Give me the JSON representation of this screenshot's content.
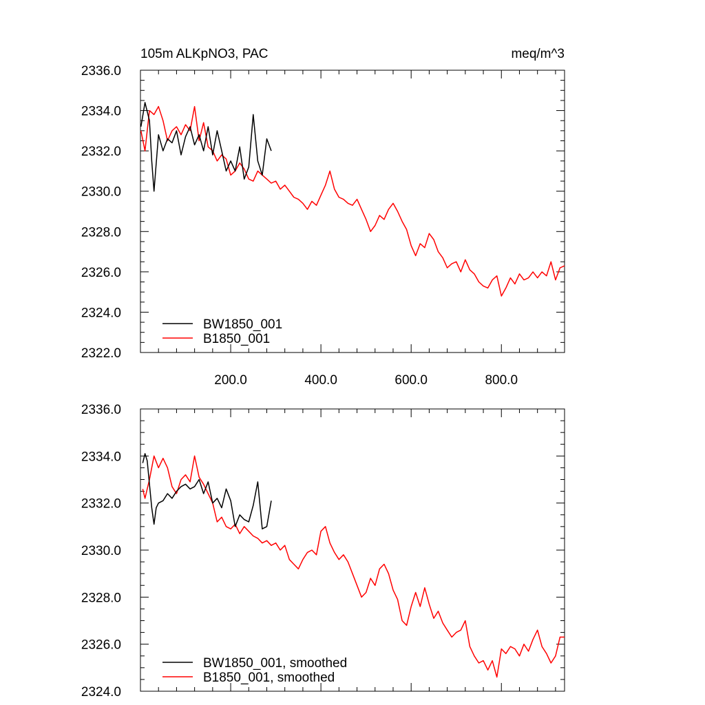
{
  "chart_data": [
    {
      "type": "line",
      "title": "105m ALKpNO3, PAC",
      "units": "meq/m^3",
      "xlim": [
        0,
        940
      ],
      "ylim": [
        2322,
        2336
      ],
      "yticks": [
        2322,
        2324,
        2326,
        2328,
        2330,
        2332,
        2334,
        2336
      ],
      "ytick_labels": [
        "2322.0",
        "2324.0",
        "2326.0",
        "2328.0",
        "2330.0",
        "2332.0",
        "2334.0",
        "2336.0"
      ],
      "xticks": [
        200,
        400,
        600,
        800
      ],
      "xtick_labels": [
        "200.0",
        "400.0",
        "600.0",
        "800.0"
      ],
      "legend": "bottom-left",
      "series": [
        {
          "name": "BW1850_001",
          "color": "#000000",
          "x": [
            1,
            10,
            20,
            25,
            30,
            40,
            50,
            60,
            70,
            80,
            90,
            100,
            110,
            120,
            130,
            140,
            150,
            160,
            170,
            180,
            190,
            200,
            210,
            220,
            230,
            240,
            250,
            260,
            270,
            280,
            290
          ],
          "y": [
            2333.2,
            2334.4,
            2333.5,
            2331.5,
            2330.0,
            2332.8,
            2332.0,
            2332.6,
            2332.4,
            2333.0,
            2331.8,
            2332.7,
            2333.2,
            2332.3,
            2332.8,
            2332.0,
            2333.2,
            2331.8,
            2333.0,
            2332.0,
            2331.0,
            2331.5,
            2331.0,
            2332.2,
            2330.6,
            2331.2,
            2333.8,
            2331.5,
            2330.8,
            2332.6,
            2332.0
          ]
        },
        {
          "name": "B1850_001",
          "color": "#ff0000",
          "x": [
            1,
            10,
            20,
            30,
            40,
            50,
            60,
            70,
            80,
            90,
            100,
            110,
            120,
            130,
            140,
            150,
            160,
            170,
            180,
            190,
            200,
            210,
            220,
            230,
            240,
            250,
            260,
            270,
            280,
            290,
            300,
            310,
            320,
            330,
            340,
            350,
            360,
            370,
            380,
            390,
            400,
            410,
            420,
            430,
            440,
            450,
            460,
            470,
            480,
            490,
            500,
            510,
            520,
            530,
            540,
            550,
            560,
            570,
            580,
            590,
            600,
            610,
            620,
            630,
            640,
            650,
            660,
            670,
            680,
            690,
            700,
            710,
            720,
            730,
            740,
            750,
            760,
            770,
            780,
            790,
            800,
            810,
            820,
            830,
            840,
            850,
            860,
            870,
            880,
            890,
            900,
            910,
            920,
            930,
            940
          ],
          "y": [
            2333.0,
            2332.0,
            2334.0,
            2333.8,
            2334.2,
            2333.5,
            2332.5,
            2333.0,
            2333.2,
            2332.8,
            2333.3,
            2333.0,
            2334.2,
            2332.5,
            2333.4,
            2332.2,
            2332.0,
            2331.5,
            2331.8,
            2331.6,
            2330.8,
            2331.0,
            2331.4,
            2331.1,
            2330.6,
            2330.5,
            2331.0,
            2330.8,
            2330.6,
            2330.4,
            2330.5,
            2330.1,
            2330.3,
            2330.0,
            2329.7,
            2329.6,
            2329.4,
            2329.1,
            2329.5,
            2329.3,
            2329.8,
            2330.3,
            2331.0,
            2330.1,
            2329.7,
            2329.6,
            2329.4,
            2329.3,
            2329.6,
            2329.1,
            2328.6,
            2328.0,
            2328.3,
            2328.8,
            2328.6,
            2329.1,
            2329.4,
            2329.0,
            2328.5,
            2328.1,
            2327.3,
            2326.8,
            2327.4,
            2327.2,
            2327.9,
            2327.6,
            2327.0,
            2326.7,
            2326.2,
            2326.4,
            2326.5,
            2326.0,
            2326.6,
            2326.1,
            2325.9,
            2325.5,
            2325.3,
            2325.2,
            2325.6,
            2325.8,
            2324.8,
            2325.2,
            2325.7,
            2325.4,
            2325.9,
            2325.6,
            2325.7,
            2326.0,
            2325.7,
            2326.0,
            2325.8,
            2326.5,
            2325.6,
            2326.2,
            2326.3
          ]
        }
      ]
    },
    {
      "type": "line",
      "title": "",
      "xlim": [
        0,
        940
      ],
      "ylim": [
        2324,
        2336
      ],
      "yticks": [
        2324,
        2326,
        2328,
        2330,
        2332,
        2334,
        2336
      ],
      "ytick_labels": [
        "2324.0",
        "2326.0",
        "2328.0",
        "2330.0",
        "2332.0",
        "2334.0",
        "2336.0"
      ],
      "xticks": [
        200,
        400,
        600,
        800
      ],
      "legend": "bottom-left",
      "series": [
        {
          "name": "BW1850_001, smoothed",
          "color": "#000000",
          "x": [
            5,
            10,
            15,
            20,
            25,
            30,
            35,
            40,
            50,
            60,
            70,
            80,
            90,
            100,
            110,
            120,
            130,
            140,
            150,
            160,
            170,
            180,
            190,
            200,
            210,
            220,
            230,
            240,
            250,
            260,
            270,
            280,
            290
          ],
          "y": [
            2333.7,
            2334.1,
            2333.8,
            2332.8,
            2331.8,
            2331.1,
            2331.8,
            2332.0,
            2332.1,
            2332.4,
            2332.2,
            2332.5,
            2332.7,
            2332.8,
            2332.6,
            2332.7,
            2333.0,
            2332.4,
            2332.9,
            2332.0,
            2332.2,
            2331.8,
            2332.6,
            2332.1,
            2331.0,
            2331.5,
            2331.3,
            2331.2,
            2331.9,
            2332.9,
            2330.9,
            2331.0,
            2332.1
          ]
        },
        {
          "name": "B1850_001, smoothed",
          "color": "#ff0000",
          "x": [
            5,
            10,
            20,
            30,
            40,
            50,
            60,
            70,
            80,
            90,
            100,
            110,
            120,
            130,
            140,
            150,
            160,
            170,
            180,
            190,
            200,
            210,
            220,
            230,
            240,
            250,
            260,
            270,
            280,
            290,
            300,
            310,
            320,
            330,
            340,
            350,
            360,
            370,
            380,
            390,
            400,
            410,
            420,
            430,
            440,
            450,
            460,
            470,
            480,
            490,
            500,
            510,
            520,
            530,
            540,
            550,
            560,
            570,
            580,
            590,
            600,
            610,
            620,
            630,
            640,
            650,
            660,
            670,
            680,
            690,
            700,
            710,
            720,
            730,
            740,
            750,
            760,
            770,
            780,
            790,
            800,
            810,
            820,
            830,
            840,
            850,
            860,
            870,
            880,
            890,
            900,
            910,
            920,
            930,
            940
          ],
          "y": [
            2332.6,
            2332.2,
            2333.0,
            2334.0,
            2333.5,
            2333.9,
            2333.5,
            2332.7,
            2332.4,
            2333.0,
            2333.2,
            2332.9,
            2334.0,
            2333.1,
            2332.8,
            2332.4,
            2332.0,
            2331.2,
            2331.4,
            2331.0,
            2330.9,
            2331.1,
            2330.7,
            2331.0,
            2330.8,
            2330.6,
            2330.5,
            2330.3,
            2330.4,
            2330.2,
            2330.3,
            2330.0,
            2330.2,
            2329.6,
            2329.4,
            2329.2,
            2329.6,
            2329.9,
            2330.0,
            2329.8,
            2330.8,
            2331.0,
            2330.3,
            2329.9,
            2329.6,
            2329.8,
            2329.5,
            2329.0,
            2328.5,
            2328.0,
            2328.2,
            2328.8,
            2328.5,
            2329.2,
            2329.4,
            2329.0,
            2328.3,
            2327.9,
            2327.0,
            2326.8,
            2327.6,
            2328.2,
            2327.6,
            2328.4,
            2327.7,
            2327.1,
            2327.4,
            2326.9,
            2326.6,
            2326.3,
            2326.5,
            2326.6,
            2327.0,
            2325.9,
            2325.5,
            2325.2,
            2325.3,
            2324.9,
            2325.3,
            2324.6,
            2325.8,
            2325.6,
            2325.9,
            2325.8,
            2325.5,
            2326.0,
            2325.7,
            2326.2,
            2326.6,
            2325.9,
            2325.6,
            2325.2,
            2325.5,
            2326.3,
            2326.3
          ]
        }
      ]
    }
  ]
}
